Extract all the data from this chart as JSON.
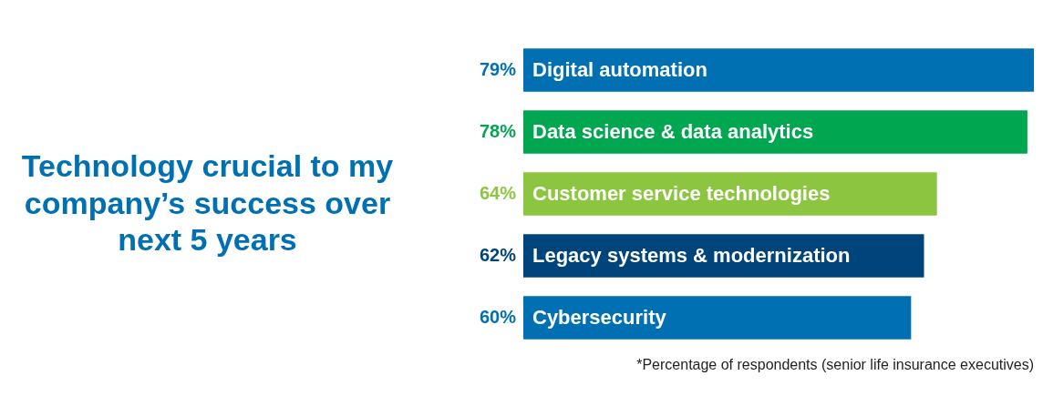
{
  "chart_data": {
    "type": "bar",
    "orientation": "horizontal",
    "title": "Technology crucial to my company’s success over next 5 years",
    "categories": [
      "Digital automation",
      "Data science & data analytics",
      "Customer service technologies",
      "Legacy systems & modernization",
      "Cybersecurity"
    ],
    "values": [
      79,
      78,
      64,
      62,
      60
    ],
    "value_labels": [
      "79%",
      "78%",
      "64%",
      "62%",
      "60%"
    ],
    "colors": [
      "#0070b2",
      "#00a650",
      "#8cc540",
      "#00447c",
      "#0070b2"
    ],
    "annotations": [
      "*Percentage of respondents (senior life insurance executives)"
    ]
  }
}
